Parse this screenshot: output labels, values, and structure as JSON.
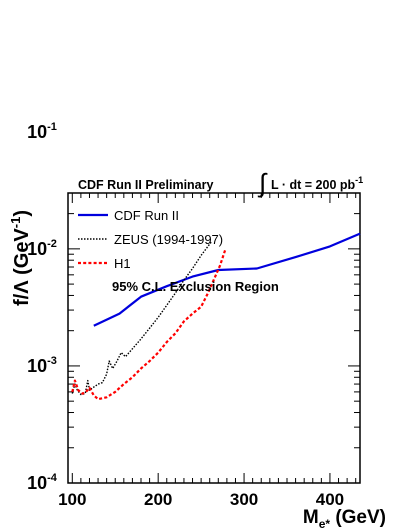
{
  "chart_data": {
    "type": "line",
    "title": "CDF Run II Preliminary",
    "luminosity_prefix": "∫",
    "luminosity_label": "L · dt = 200 pb",
    "luminosity_exponent": "-1",
    "annotation": "95% C.L.  Exclusion Region",
    "xlabel_main": "M",
    "xlabel_sub": "e*",
    "xlabel_unit": " (GeV)",
    "ylabel_main": "f/Λ (GeV",
    "ylabel_exp": "-1",
    "ylabel_close": ")",
    "xlim": [
      95,
      435
    ],
    "ylim": [
      0.0001,
      0.03
    ],
    "log_y": true,
    "grid": false,
    "legend_position": "top-left",
    "x_ticks": [
      {
        "value": 100,
        "label": "100"
      },
      {
        "value": 200,
        "label": "200"
      },
      {
        "value": 300,
        "label": "300"
      },
      {
        "value": 400,
        "label": "400"
      }
    ],
    "y_ticks": [
      {
        "value": 0.0001,
        "base": "10",
        "exp": "-4"
      },
      {
        "value": 0.001,
        "base": "10",
        "exp": "-3"
      },
      {
        "value": 0.01,
        "base": "10",
        "exp": "-2"
      },
      {
        "value": 0.1,
        "base": "10",
        "exp": "-1"
      }
    ],
    "series": [
      {
        "name": "CDF Run II",
        "color": "#0000dd",
        "style": "solid",
        "points": [
          [
            125,
            0.0022
          ],
          [
            155,
            0.0028
          ],
          [
            180,
            0.0039
          ],
          [
            210,
            0.0048
          ],
          [
            240,
            0.0058
          ],
          [
            270,
            0.0066
          ],
          [
            315,
            0.0068
          ],
          [
            360,
            0.0085
          ],
          [
            400,
            0.0105
          ],
          [
            435,
            0.0135
          ]
        ]
      },
      {
        "name": "ZEUS (1994-1997)",
        "color": "#000000",
        "style": "dotted",
        "points": [
          [
            100,
            0.00058
          ],
          [
            103,
            0.0007
          ],
          [
            106,
            0.00062
          ],
          [
            110,
            0.00057
          ],
          [
            115,
            0.00058
          ],
          [
            118,
            0.00075
          ],
          [
            120,
            0.00062
          ],
          [
            125,
            0.00066
          ],
          [
            130,
            0.0007
          ],
          [
            135,
            0.00072
          ],
          [
            140,
            0.00085
          ],
          [
            143,
            0.0011
          ],
          [
            147,
            0.00095
          ],
          [
            152,
            0.0011
          ],
          [
            157,
            0.0013
          ],
          [
            162,
            0.0012
          ],
          [
            170,
            0.0014
          ],
          [
            180,
            0.0017
          ],
          [
            190,
            0.0021
          ],
          [
            200,
            0.0026
          ],
          [
            210,
            0.0033
          ],
          [
            220,
            0.0042
          ],
          [
            230,
            0.0054
          ],
          [
            240,
            0.0068
          ],
          [
            250,
            0.0088
          ],
          [
            262,
            0.0115
          ]
        ]
      },
      {
        "name": "H1",
        "color": "#ff0000",
        "style": "dashed",
        "points": [
          [
            100,
            0.0006
          ],
          [
            103,
            0.00075
          ],
          [
            107,
            0.00062
          ],
          [
            112,
            0.00058
          ],
          [
            116,
            0.0006
          ],
          [
            120,
            0.00065
          ],
          [
            125,
            0.00056
          ],
          [
            130,
            0.00052
          ],
          [
            140,
            0.00054
          ],
          [
            150,
            0.0006
          ],
          [
            160,
            0.0007
          ],
          [
            170,
            0.0008
          ],
          [
            180,
            0.00095
          ],
          [
            190,
            0.0011
          ],
          [
            200,
            0.0013
          ],
          [
            210,
            0.0016
          ],
          [
            220,
            0.0019
          ],
          [
            230,
            0.0024
          ],
          [
            240,
            0.0028
          ],
          [
            250,
            0.0032
          ],
          [
            258,
            0.0042
          ],
          [
            265,
            0.0055
          ],
          [
            272,
            0.0072
          ],
          [
            278,
            0.0098
          ]
        ]
      }
    ]
  }
}
